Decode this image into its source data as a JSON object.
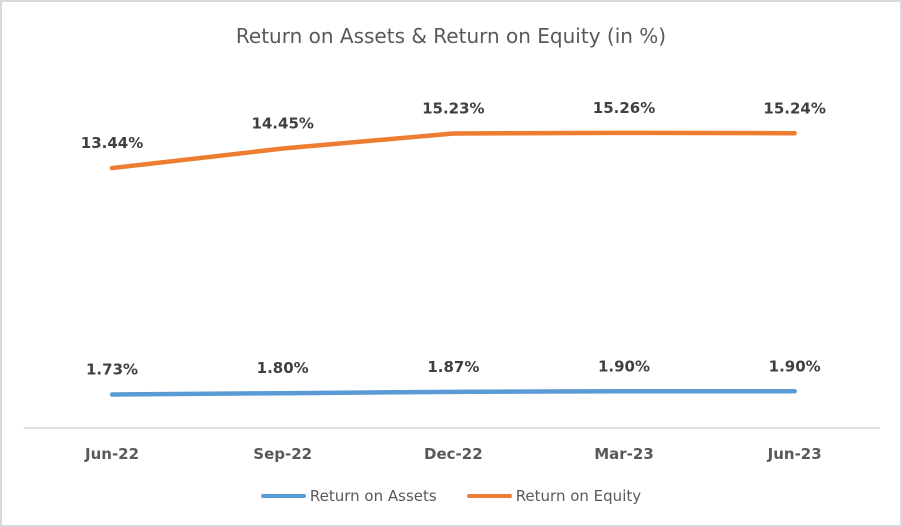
{
  "title": "Return on Assets & Return on Equity (in %)",
  "chart_data": {
    "type": "line",
    "title": "Return on Assets & Return on Equity (in %)",
    "categories": [
      "Jun-22",
      "Sep-22",
      "Dec-22",
      "Mar-23",
      "Jun-23"
    ],
    "series": [
      {
        "name": "Return on Assets",
        "color": "#5B9BD5",
        "values": [
          1.73,
          1.8,
          1.87,
          1.9,
          1.9
        ],
        "labels": [
          "1.73%",
          "1.80%",
          "1.87%",
          "1.90%",
          "1.90%"
        ]
      },
      {
        "name": "Return on Equity",
        "color": "#ED7D31",
        "values": [
          13.44,
          14.45,
          15.23,
          15.26,
          15.24
        ],
        "labels": [
          "13.44%",
          "14.45%",
          "15.23%",
          "15.26%",
          "15.24%"
        ]
      }
    ],
    "xlabel": "",
    "ylabel": "",
    "ylim": [
      0,
      16
    ],
    "grid": false,
    "y_axis_visible": false,
    "data_labels": true,
    "legend_position": "bottom",
    "title_color": "#595959",
    "axis_text_color": "#595959",
    "data_label_color": "#404040",
    "axis_line_color": "#D9D9D9",
    "background_color": "#FFFFFF",
    "border_color": "#D9D9D9"
  },
  "legend": {
    "items": [
      {
        "label": "Return on Assets",
        "color": "#5B9BD5"
      },
      {
        "label": "Return on Equity",
        "color": "#ED7D31"
      }
    ]
  }
}
